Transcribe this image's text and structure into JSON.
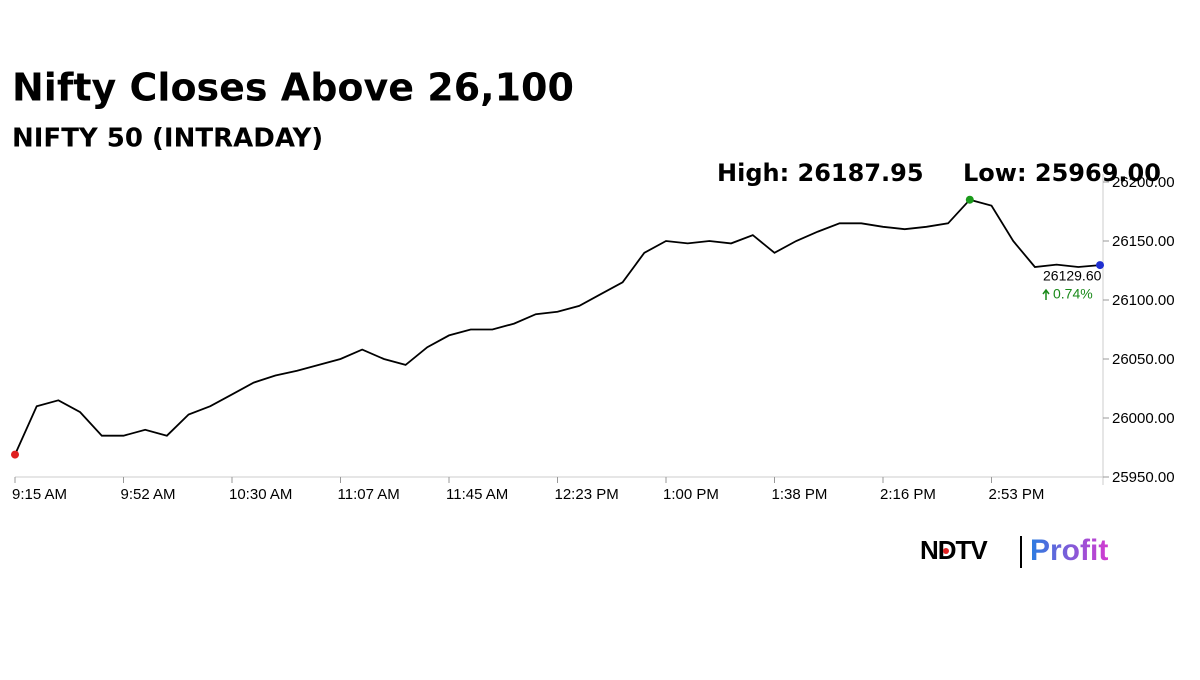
{
  "chart_data": {
    "type": "line",
    "title": "Nifty Closes Above 26,100",
    "subtitle": "NIFTY 50 (INTRADAY)",
    "high_label": "High: 26187.95",
    "low_label": "Low: 25969.00",
    "last_label": "26129.60",
    "change_label": "0.74%",
    "categories": [
      "9:15 AM",
      null,
      null,
      null,
      null,
      "9:52 AM",
      null,
      null,
      null,
      null,
      "10:30 AM",
      null,
      null,
      null,
      null,
      "11:07 AM",
      null,
      null,
      null,
      null,
      "11:45 AM",
      null,
      null,
      null,
      null,
      "12:23 PM",
      null,
      null,
      null,
      null,
      "1:00 PM",
      null,
      null,
      null,
      null,
      "1:38 PM",
      null,
      null,
      null,
      null,
      "2:16 PM",
      null,
      null,
      null,
      null,
      "2:53 PM",
      null,
      null,
      null,
      null,
      null
    ],
    "series": [
      {
        "name": "NIFTY 50",
        "color": "#000000",
        "values": [
          25969,
          26010,
          26015,
          26005,
          25985,
          25985,
          25990,
          25985,
          26003,
          26010,
          26020,
          26030,
          26036,
          26040,
          26045,
          26050,
          26058,
          26050,
          26045,
          26060,
          26070,
          26075,
          26075,
          26080,
          26088,
          26090,
          26095,
          26105,
          26115,
          26140,
          26150,
          26148,
          26150,
          26148,
          26155,
          26140,
          26150,
          26158,
          26165,
          26165,
          26162,
          26160,
          26162,
          26165,
          26185,
          26180,
          26150,
          26128,
          26130,
          26128,
          26129.6
        ]
      }
    ],
    "marker_colors": {
      "low": "#e02020",
      "high": "#1a9a1a",
      "last": "#1f2fd0"
    },
    "change_color": "#1a8a1a",
    "ylim": [
      25950,
      26200
    ],
    "yticks": [
      {
        "value": 25950,
        "label": "25950.00"
      },
      {
        "value": 26000,
        "label": "26000.00"
      },
      {
        "value": 26050,
        "label": "26050.00"
      },
      {
        "value": 26100,
        "label": "26100.00"
      },
      {
        "value": 26150,
        "label": "26150.00"
      },
      {
        "value": 26200,
        "label": "26200.00"
      }
    ],
    "grid": false
  },
  "logo": {
    "brand": "NDTV",
    "product": "Profit"
  }
}
